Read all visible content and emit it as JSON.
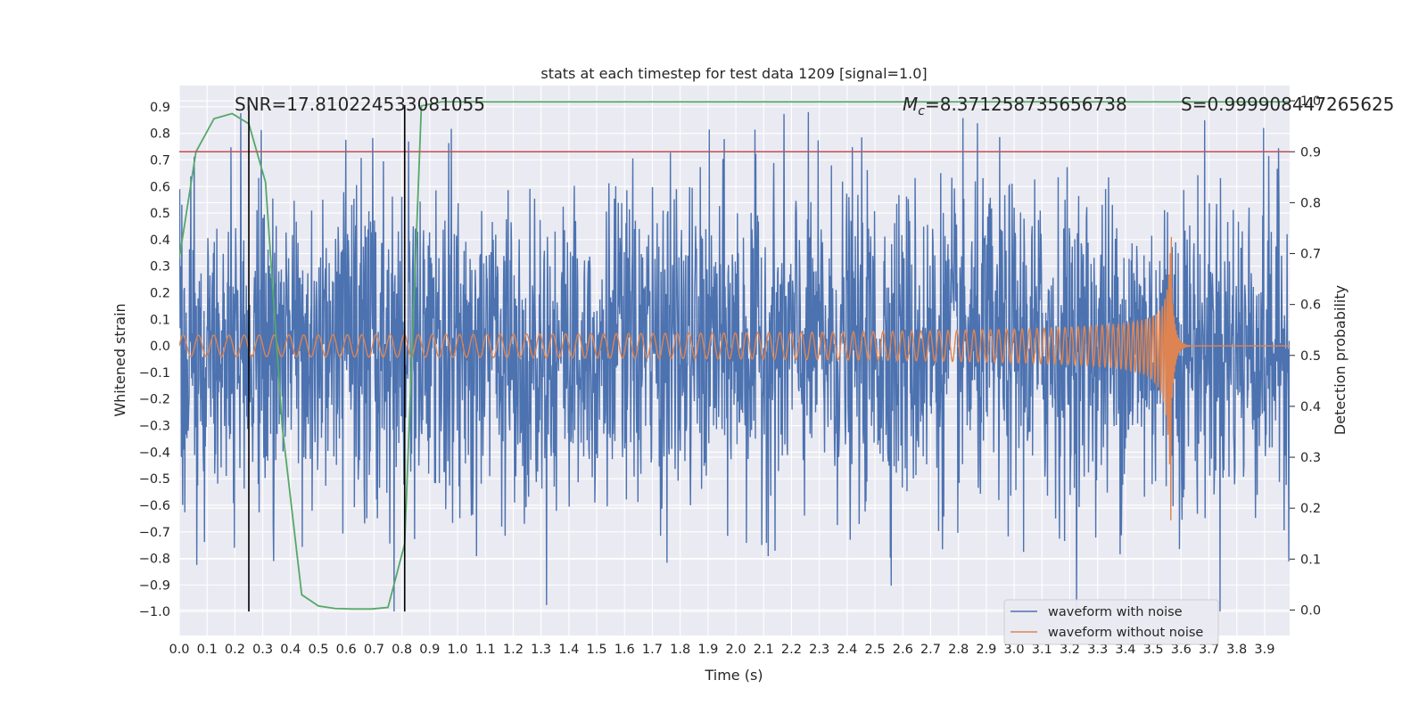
{
  "chart_data": {
    "type": "line",
    "title": "stats at each timestep for test data 1209 [signal=1.0]",
    "xlabel": "Time (s)",
    "ylabel_left": "Whitened strain",
    "ylabel_right": "Detection probability",
    "xlim": [
      0.0,
      3.99
    ],
    "ylim_left": [
      -1.09,
      0.98
    ],
    "ylim_right": [
      -0.05,
      1.03
    ],
    "x_ticks": [
      "0.0",
      "0.1",
      "0.2",
      "0.3",
      "0.4",
      "0.5",
      "0.6",
      "0.7",
      "0.8",
      "0.9",
      "1.0",
      "1.1",
      "1.2",
      "1.3",
      "1.4",
      "1.5",
      "1.6",
      "1.7",
      "1.8",
      "1.9",
      "2.0",
      "2.1",
      "2.2",
      "2.3",
      "2.4",
      "2.5",
      "2.6",
      "2.7",
      "2.8",
      "2.9",
      "3.0",
      "3.1",
      "3.2",
      "3.3",
      "3.4",
      "3.5",
      "3.6",
      "3.7",
      "3.8",
      "3.9"
    ],
    "y_ticks_left": [
      "0.9",
      "0.8",
      "0.7",
      "0.6",
      "0.5",
      "0.4",
      "0.3",
      "0.2",
      "0.1",
      "0.0",
      "-0.1",
      "-0.2",
      "-0.3",
      "-0.4",
      "-0.5",
      "-0.6",
      "-0.7",
      "-0.8",
      "-0.9",
      "-1.0"
    ],
    "y_ticks_right": [
      "1.0",
      "0.9",
      "0.8",
      "0.7",
      "0.6",
      "0.5",
      "0.4",
      "0.3",
      "0.2",
      "0.1",
      "0.0"
    ],
    "annotations": {
      "snr": "SNR=17.810224533081055",
      "mc_symbol": "M",
      "mc_sub": "c",
      "mc_value": "=8.371258735656738",
      "s": "S=0.999908447265625"
    },
    "threshold": {
      "value": 0.9,
      "axis": "right",
      "color": "#c44e52"
    },
    "vertical_markers": [
      0.25,
      0.81
    ],
    "series": [
      {
        "name": "waveform with noise",
        "color": "#4c72b0",
        "kind": "noise",
        "amplitude": 0.3,
        "peak_min": -1.0,
        "peak_max": 0.88
      },
      {
        "name": "waveform without noise",
        "color": "#dd8452",
        "kind": "chirp",
        "t_merge": 3.565,
        "amp_start": 0.04,
        "amp_peak_pos": 0.41,
        "amp_peak_neg": -0.67
      },
      {
        "name": "detection probability",
        "color": "#55a868",
        "axis": "right",
        "x": [
          0.0,
          0.06,
          0.125,
          0.19,
          0.25,
          0.31,
          0.37,
          0.44,
          0.5,
          0.56,
          0.62,
          0.69,
          0.75,
          0.81,
          0.87,
          0.94,
          1.0,
          1.5,
          2.0,
          2.5,
          3.0,
          3.5,
          3.99
        ],
        "y": [
          0.69,
          0.9,
          0.965,
          0.975,
          0.955,
          0.84,
          0.36,
          0.03,
          0.008,
          0.003,
          0.002,
          0.002,
          0.005,
          0.13,
          0.99,
          0.998,
          0.998,
          0.998,
          0.998,
          0.998,
          0.998,
          0.998,
          0.998
        ]
      }
    ],
    "legend": {
      "placement": "lower-right",
      "entries": [
        "waveform with noise",
        "waveform without noise"
      ]
    }
  }
}
